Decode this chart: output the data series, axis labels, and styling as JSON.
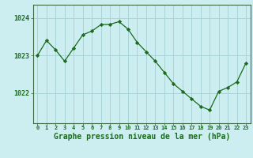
{
  "x": [
    0,
    1,
    2,
    3,
    4,
    5,
    6,
    7,
    8,
    9,
    10,
    11,
    12,
    13,
    14,
    15,
    16,
    17,
    18,
    19,
    20,
    21,
    22,
    23
  ],
  "y": [
    1023.0,
    1023.4,
    1023.15,
    1022.85,
    1023.2,
    1023.55,
    1023.65,
    1023.82,
    1023.83,
    1023.9,
    1023.7,
    1023.35,
    1023.1,
    1022.85,
    1022.55,
    1022.25,
    1022.05,
    1021.85,
    1021.65,
    1021.55,
    1022.05,
    1022.15,
    1022.3,
    1022.8
  ],
  "line_color": "#1a6b1a",
  "marker": "D",
  "marker_size": 2.2,
  "bg_color": "#cceef0",
  "grid_color": "#aad4d8",
  "xlabel": "Graphe pression niveau de la mer (hPa)",
  "xlabel_fontsize": 7,
  "tick_color": "#1a6b1a",
  "yticks": [
    1022,
    1023,
    1024
  ],
  "ylim": [
    1021.2,
    1024.35
  ],
  "xlim": [
    -0.5,
    23.5
  ],
  "xticks": [
    0,
    1,
    2,
    3,
    4,
    5,
    6,
    7,
    8,
    9,
    10,
    11,
    12,
    13,
    14,
    15,
    16,
    17,
    18,
    19,
    20,
    21,
    22,
    23
  ]
}
